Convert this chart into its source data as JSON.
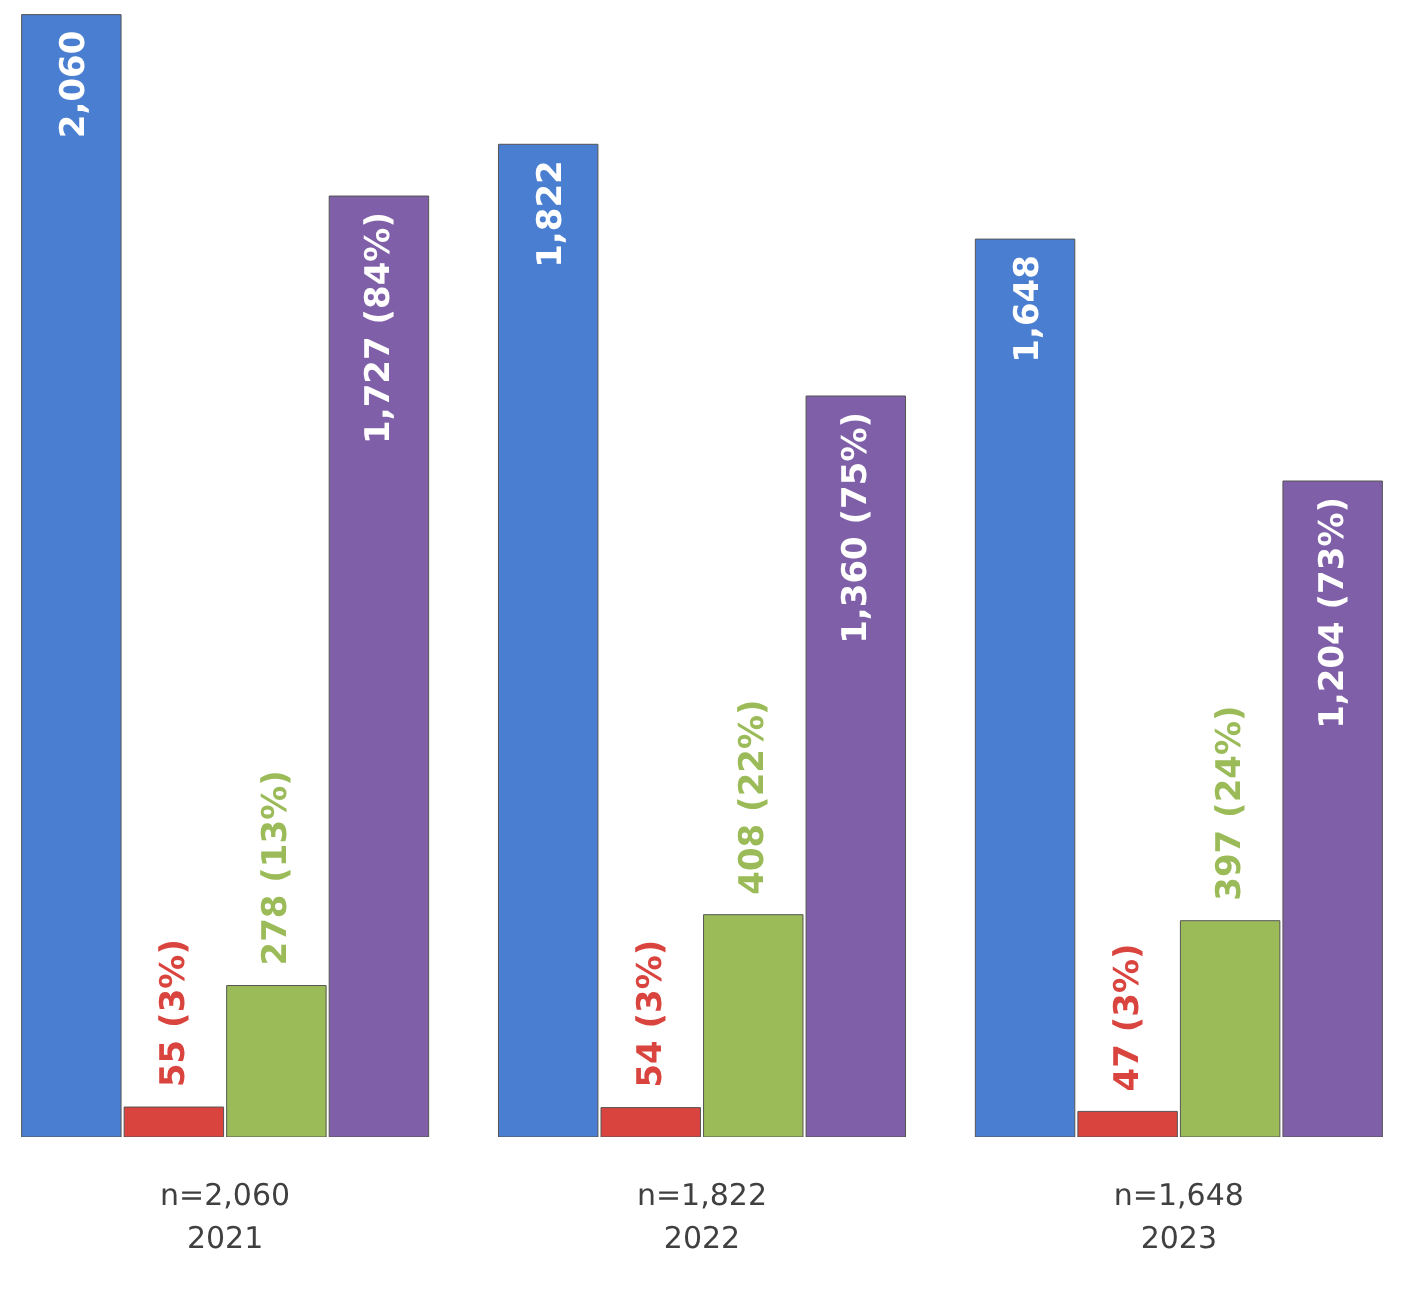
{
  "chart_data": {
    "type": "bar",
    "categories": [
      "n=2,060\n2021",
      "n=1,822\n2022",
      "n=1,648\n2023"
    ],
    "series": [
      {
        "color": "#4a7ed0",
        "values": [
          2060,
          1822,
          1648
        ],
        "value_labels": [
          "2,060",
          "1,822",
          "1,648"
        ]
      },
      {
        "color": "#d9443f",
        "values": [
          55,
          54,
          47
        ],
        "value_labels": [
          "55 (3%)",
          "54 (3%)",
          "47 (3%)"
        ]
      },
      {
        "color": "#9bbb59",
        "values": [
          278,
          408,
          397
        ],
        "value_labels": [
          "278 (13%)",
          "408 (22%)",
          "397 (24%)"
        ]
      },
      {
        "color": "#7f5fa8",
        "values": [
          1727,
          1360,
          1204
        ],
        "value_labels": [
          "1,727 (84%)",
          "1,360 (75%)",
          "1,204 (73%)"
        ]
      }
    ],
    "grid": false
  }
}
